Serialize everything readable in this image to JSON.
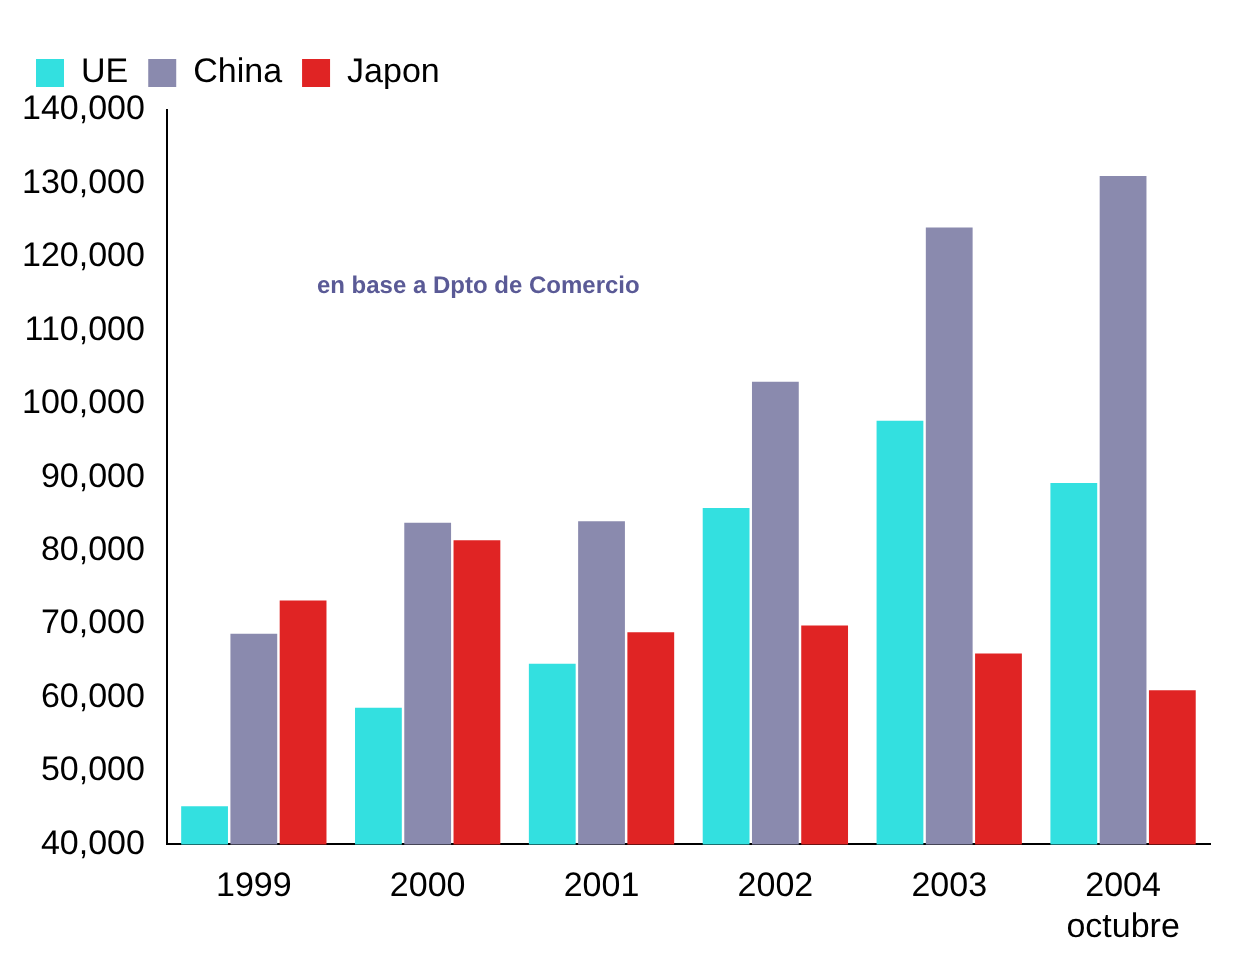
{
  "chart_data": {
    "type": "bar",
    "categories": [
      "1999",
      "2000",
      "2001",
      "2002",
      "2003",
      "2004\noctubre"
    ],
    "series": [
      {
        "name": "UE",
        "color": "#33e0e0",
        "values": [
          45200,
          58600,
          64600,
          85800,
          97700,
          89200
        ]
      },
      {
        "name": "China",
        "color": "#8a8aae",
        "values": [
          68700,
          83800,
          84000,
          103000,
          124000,
          131000
        ]
      },
      {
        "name": "Japon",
        "color": "#e02424",
        "values": [
          73200,
          81400,
          68900,
          69800,
          66000,
          61000
        ]
      }
    ],
    "ylim": [
      40000,
      140000
    ],
    "yticks": [
      {
        "value": 40000,
        "label": "40,000"
      },
      {
        "value": 50000,
        "label": "50,000"
      },
      {
        "value": 60000,
        "label": "60,000"
      },
      {
        "value": 70000,
        "label": "70,000"
      },
      {
        "value": 80000,
        "label": "80,000"
      },
      {
        "value": 90000,
        "label": "90,000"
      },
      {
        "value": 100000,
        "label": "100,000"
      },
      {
        "value": 110000,
        "label": "110,000"
      },
      {
        "value": 120000,
        "label": "120,000"
      },
      {
        "value": 130000,
        "label": "130,000"
      },
      {
        "value": 140000,
        "label": "140,000"
      }
    ],
    "grid": false,
    "legend": "top left",
    "annotations": [
      "en base a Dpto de Comercio"
    ]
  }
}
